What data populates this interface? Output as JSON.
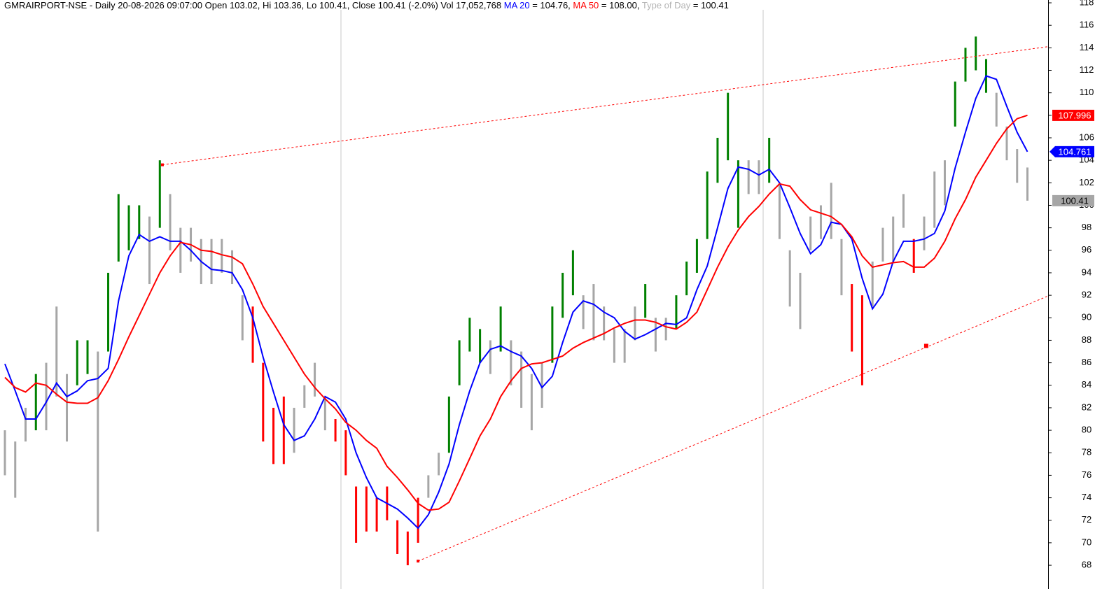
{
  "chart_data": {
    "type": "ohlc",
    "header": [
      "GMRAIRPORT-NSE - Daily 20-08-2026 09:07:00 Open 103.02, Hi 103.36, Lo 100.41, Close 100.41 (-2.0%) Vol 17,052,768 ",
      " = 104.76, ",
      " = 108.00, ",
      " = 100.41"
    ],
    "type_of_day": {
      "name": "Type of Day",
      "color": "#b4b4b4"
    },
    "x": [
      0,
      1,
      2,
      3,
      4,
      5,
      6,
      7,
      8,
      9,
      10,
      11,
      12,
      13,
      14,
      15,
      16,
      17,
      18,
      19,
      20,
      21,
      22,
      23,
      24,
      25,
      26,
      27,
      28,
      29,
      30,
      31,
      32,
      33,
      34,
      35,
      36,
      37,
      38,
      39,
      40,
      41,
      42,
      43,
      44,
      45,
      46,
      47,
      48,
      49,
      50,
      51,
      52,
      53,
      54,
      55,
      56,
      57,
      58,
      59,
      60,
      61,
      62,
      63,
      64,
      65,
      66,
      67,
      68,
      69,
      70,
      71,
      72,
      73,
      74,
      75,
      76,
      77,
      78,
      79,
      80,
      81,
      82,
      83,
      84,
      85,
      86,
      87,
      88,
      89,
      90,
      91,
      92,
      93,
      94,
      95,
      96,
      97,
      98,
      99
    ],
    "xlim": [
      0,
      101
    ],
    "high": [
      80,
      79,
      82,
      85,
      86,
      91,
      85,
      88,
      88,
      87,
      94,
      101,
      100,
      100,
      99,
      104,
      101,
      98,
      98,
      97,
      97,
      97,
      96,
      92,
      91,
      86,
      82,
      83,
      82,
      84,
      86,
      83,
      81,
      80,
      75,
      75,
      74,
      75,
      72,
      71,
      74,
      76,
      78,
      83,
      88,
      90,
      89,
      88,
      91,
      88,
      87,
      85,
      86,
      91,
      94,
      96,
      92,
      93,
      91,
      89,
      89,
      91,
      93,
      90,
      90,
      92,
      95,
      97,
      103,
      106,
      110,
      104,
      104,
      104,
      106,
      102,
      96,
      94,
      99,
      100,
      102,
      97,
      93,
      92,
      95,
      98,
      99,
      101,
      97,
      99,
      103,
      104,
      111,
      114,
      115,
      113,
      110,
      107,
      105,
      103.36
    ],
    "low": [
      76,
      74,
      79,
      80,
      80,
      83,
      79,
      84,
      85,
      71,
      87,
      95,
      96,
      97,
      93,
      98,
      96,
      94,
      95,
      93,
      93,
      94,
      93,
      88,
      86,
      79,
      77,
      77,
      78,
      82,
      83,
      80,
      79,
      76,
      70,
      71,
      71,
      72,
      69,
      68,
      70,
      74,
      76,
      78,
      84,
      87,
      86,
      85,
      87,
      84,
      82,
      80,
      82,
      86,
      90,
      92,
      89,
      88,
      88,
      86,
      86,
      88,
      90,
      87,
      88,
      89,
      92,
      94,
      97,
      102,
      104,
      98,
      101,
      101,
      102,
      97,
      91,
      89,
      96,
      97,
      97,
      92,
      87,
      84,
      91,
      95,
      95,
      98,
      94,
      96,
      98,
      100,
      107,
      111,
      112,
      110,
      107,
      104,
      102,
      100.41
    ],
    "bar_kind": [
      "n",
      "n",
      "n",
      "g",
      "n",
      "n",
      "n",
      "g",
      "g",
      "n",
      "g",
      "g",
      "g",
      "g",
      "n",
      "g",
      "n",
      "n",
      "n",
      "n",
      "n",
      "n",
      "n",
      "n",
      "r",
      "r",
      "r",
      "r",
      "n",
      "n",
      "n",
      "n",
      "r",
      "r",
      "r",
      "r",
      "r",
      "r",
      "r",
      "r",
      "r",
      "n",
      "n",
      "g",
      "g",
      "g",
      "g",
      "n",
      "g",
      "n",
      "n",
      "n",
      "n",
      "g",
      "g",
      "g",
      "n",
      "n",
      "n",
      "n",
      "n",
      "n",
      "g",
      "n",
      "n",
      "g",
      "g",
      "g",
      "g",
      "g",
      "g",
      "g",
      "n",
      "n",
      "g",
      "n",
      "n",
      "n",
      "n",
      "n",
      "n",
      "n",
      "r",
      "r",
      "n",
      "n",
      "n",
      "n",
      "r",
      "n",
      "n",
      "n",
      "g",
      "g",
      "g",
      "g",
      "n",
      "n",
      "n",
      "n"
    ],
    "palette": {
      "g": "#008000",
      "r": "#ff0000",
      "n": "#a6a6a6"
    },
    "series": [
      {
        "name": "MA 20",
        "color": "#0000ff",
        "values": [
          85.9,
          83.5,
          81.0,
          81.0,
          82.5,
          84.2,
          83.0,
          83.5,
          84.4,
          84.6,
          85.5,
          91.5,
          95.5,
          97.4,
          96.8,
          97.2,
          96.8,
          96.8,
          96.0,
          95.0,
          94.3,
          94.2,
          94.0,
          92.5,
          90.0,
          86.5,
          83.4,
          80.5,
          79.1,
          79.5,
          81.0,
          83.0,
          82.5,
          81.0,
          78.0,
          75.8,
          74.0,
          73.5,
          73.0,
          72.2,
          71.3,
          72.5,
          74.5,
          77.0,
          80.5,
          83.5,
          86.0,
          87.2,
          87.5,
          87.0,
          86.6,
          85.5,
          83.8,
          84.8,
          87.8,
          90.5,
          91.5,
          91.2,
          90.5,
          90.0,
          88.8,
          88.1,
          88.5,
          89.0,
          89.5,
          89.4,
          90.0,
          92.5,
          94.6,
          98.0,
          101.5,
          103.4,
          103.2,
          102.7,
          103.2,
          102.0,
          99.8,
          97.5,
          95.7,
          96.5,
          98.5,
          98.3,
          97.0,
          93.5,
          90.8,
          92.1,
          95.0,
          96.8,
          96.8,
          97.0,
          97.5,
          99.5,
          103.3,
          106.5,
          109.5,
          111.5,
          111.2,
          108.8,
          106.5,
          104.76
        ]
      },
      {
        "name": "MA 50",
        "color": "#ff0000",
        "values": [
          84.7,
          83.8,
          83.4,
          84.2,
          84.0,
          83.2,
          82.5,
          82.4,
          82.4,
          82.9,
          84.4,
          86.3,
          88.3,
          90.2,
          92.1,
          94.0,
          95.5,
          96.7,
          96.5,
          96.0,
          95.9,
          95.6,
          95.4,
          94.8,
          93.0,
          91.0,
          89.5,
          88.0,
          86.5,
          85.0,
          83.8,
          82.8,
          81.9,
          80.7,
          80.0,
          79.1,
          78.4,
          76.8,
          75.8,
          74.7,
          73.5,
          72.9,
          73.0,
          73.6,
          75.5,
          77.5,
          79.5,
          81.0,
          83.0,
          84.4,
          85.5,
          85.9,
          86.0,
          86.3,
          86.6,
          87.3,
          87.8,
          88.2,
          88.6,
          89.1,
          89.5,
          89.8,
          89.8,
          89.6,
          89.2,
          89.0,
          89.6,
          90.5,
          92.5,
          94.5,
          96.3,
          97.8,
          99.0,
          99.9,
          101.0,
          101.9,
          101.7,
          100.5,
          99.6,
          99.3,
          99.0,
          98.3,
          97.2,
          95.5,
          94.5,
          94.7,
          94.9,
          95.0,
          94.5,
          94.5,
          95.3,
          96.8,
          98.8,
          100.5,
          102.5,
          104.0,
          105.5,
          106.8,
          107.7,
          108.0
        ]
      }
    ],
    "ylim": [
      65.89,
      118.25
    ],
    "yticks": [
      68,
      70,
      72,
      74,
      76,
      78,
      80,
      82,
      84,
      86,
      88,
      90,
      92,
      94,
      96,
      98,
      100,
      102,
      104,
      106,
      108,
      110,
      112,
      114,
      116,
      118
    ],
    "trend_color": "#ff0000",
    "trendlines": [
      {
        "x": [
          15.25,
          101
        ],
        "y": [
          103.6,
          114.1
        ]
      },
      {
        "x": [
          40,
          101
        ],
        "y": [
          68.37,
          91.94
        ]
      }
    ],
    "trend_marker": {
      "x": 89.2,
      "y": 87.5
    },
    "price_tags": [
      {
        "label": "107.996",
        "value": 107.996,
        "color": "#ff0000"
      },
      {
        "label": "104.761",
        "value": 104.761,
        "color": "#0000ff"
      },
      {
        "label": "100.41",
        "value": 100.41,
        "color": "#a6a6a6"
      }
    ]
  }
}
